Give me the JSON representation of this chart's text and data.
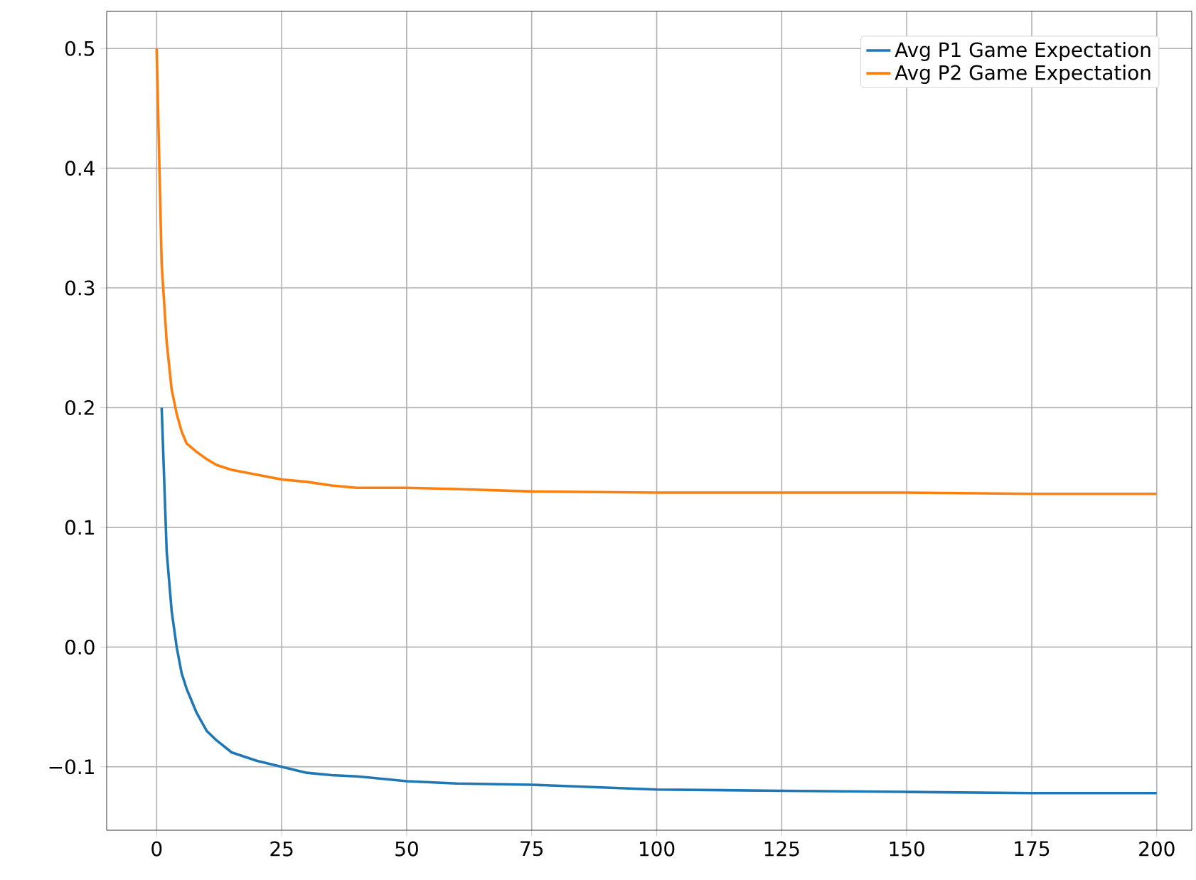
{
  "chart_data": {
    "type": "line",
    "x": [
      0,
      1,
      2,
      3,
      4,
      5,
      6,
      8,
      10,
      12,
      15,
      20,
      25,
      30,
      35,
      40,
      50,
      60,
      75,
      100,
      125,
      150,
      175,
      200
    ],
    "series": [
      {
        "name": "Avg P1 Game Expectation",
        "color": "#1f77b4",
        "values": [
          null,
          0.2,
          0.08,
          0.03,
          0.0,
          -0.022,
          -0.035,
          -0.055,
          -0.07,
          -0.078,
          -0.088,
          -0.095,
          -0.1,
          -0.105,
          -0.107,
          -0.108,
          -0.112,
          -0.114,
          -0.115,
          -0.119,
          -0.12,
          -0.121,
          -0.122,
          -0.122
        ]
      },
      {
        "name": "Avg P2 Game Expectation",
        "color": "#ff7f0e",
        "values": [
          0.5,
          0.32,
          0.255,
          0.215,
          0.195,
          0.18,
          0.17,
          0.163,
          0.157,
          0.152,
          0.148,
          0.144,
          0.14,
          0.138,
          0.135,
          0.133,
          0.133,
          0.132,
          0.13,
          0.129,
          0.129,
          0.129,
          0.128,
          0.128
        ]
      }
    ],
    "xlim": [
      -10,
      207
    ],
    "ylim": [
      -0.153,
      0.531
    ],
    "xticks": [
      0,
      25,
      50,
      75,
      100,
      125,
      150,
      175,
      200
    ],
    "yticks": [
      {
        "value": -0.1,
        "label": "−0.1"
      },
      {
        "value": 0.0,
        "label": "0.0"
      },
      {
        "value": 0.1,
        "label": "0.1"
      },
      {
        "value": 0.2,
        "label": "0.2"
      },
      {
        "value": 0.3,
        "label": "0.3"
      },
      {
        "value": 0.4,
        "label": "0.4"
      },
      {
        "value": 0.5,
        "label": "0.5"
      }
    ],
    "grid": true,
    "legend": "top right",
    "marker": "none",
    "line_style": "solid"
  }
}
